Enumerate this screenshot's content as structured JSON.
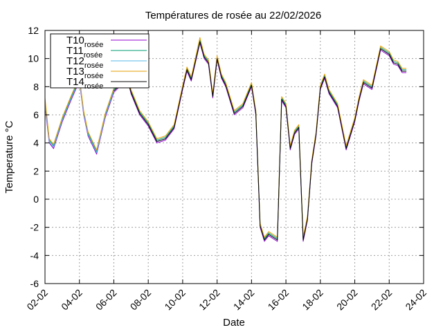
{
  "chart_data": {
    "type": "line",
    "title": "Températures de rosée au 22/02/2026",
    "xlabel": "Date",
    "ylabel": "Temperature °C",
    "xlim": [
      "2026-02-02",
      "2026-02-24"
    ],
    "ylim": [
      -6,
      12
    ],
    "x_tick_labels": [
      "02-02",
      "04-02",
      "06-02",
      "08-02",
      "10-02",
      "12-02",
      "14-02",
      "16-02",
      "18-02",
      "20-02",
      "22-02",
      "24-02"
    ],
    "y_tick_labels": [
      "-6",
      "-4",
      "-2",
      "0",
      "2",
      "4",
      "6",
      "8",
      "10",
      "12"
    ],
    "grid": true,
    "legend_position": "top-left",
    "x": [
      "2026-02-02 00:00",
      "2026-02-02 06:00",
      "2026-02-02 12:00",
      "2026-02-03 00:00",
      "2026-02-03 12:00",
      "2026-02-04 00:00",
      "2026-02-04 06:00",
      "2026-02-04 12:00",
      "2026-02-05 00:00",
      "2026-02-05 12:00",
      "2026-02-06 00:00",
      "2026-02-06 12:00",
      "2026-02-06 18:00",
      "2026-02-07 00:00",
      "2026-02-07 12:00",
      "2026-02-08 00:00",
      "2026-02-08 12:00",
      "2026-02-09 00:00",
      "2026-02-09 12:00",
      "2026-02-10 00:00",
      "2026-02-10 06:00",
      "2026-02-10 12:00",
      "2026-02-11 00:00",
      "2026-02-11 06:00",
      "2026-02-11 12:00",
      "2026-02-11 18:00",
      "2026-02-12 00:00",
      "2026-02-12 06:00",
      "2026-02-12 12:00",
      "2026-02-13 00:00",
      "2026-02-13 12:00",
      "2026-02-14 00:00",
      "2026-02-14 06:00",
      "2026-02-14 12:00",
      "2026-02-14 18:00",
      "2026-02-15 00:00",
      "2026-02-15 12:00",
      "2026-02-15 18:00",
      "2026-02-16 00:00",
      "2026-02-16 06:00",
      "2026-02-16 12:00",
      "2026-02-16 18:00",
      "2026-02-17 00:00",
      "2026-02-17 06:00",
      "2026-02-17 12:00",
      "2026-02-17 18:00",
      "2026-02-18 00:00",
      "2026-02-18 06:00",
      "2026-02-18 12:00",
      "2026-02-19 00:00",
      "2026-02-19 12:00",
      "2026-02-20 00:00",
      "2026-02-20 06:00",
      "2026-02-20 12:00",
      "2026-02-21 00:00",
      "2026-02-21 12:00",
      "2026-02-22 00:00",
      "2026-02-22 06:00",
      "2026-02-22 12:00",
      "2026-02-22 18:00",
      "2026-02-23 00:00"
    ],
    "series": [
      {
        "name": "T10",
        "name_sub": "rosée",
        "color": "#9400d3",
        "values": [
          6.6,
          4.0,
          3.6,
          5.5,
          7.0,
          8.4,
          6.0,
          4.5,
          3.2,
          5.8,
          7.6,
          8.2,
          8.7,
          7.5,
          6.0,
          5.2,
          4.0,
          4.2,
          5.0,
          7.8,
          9.1,
          8.4,
          11.1,
          10.0,
          9.6,
          7.2,
          9.9,
          8.6,
          8.0,
          6.0,
          6.5,
          8.0,
          6.0,
          -2.0,
          -3.0,
          -2.6,
          -3.0,
          7.0,
          6.5,
          3.5,
          4.6,
          5.0,
          -3.0,
          -1.5,
          2.5,
          4.5,
          7.8,
          8.6,
          7.5,
          6.5,
          3.5,
          5.5,
          7.0,
          8.2,
          7.8,
          10.6,
          10.2,
          9.6,
          9.5,
          9.0,
          9.0
        ]
      },
      {
        "name": "T11",
        "name_sub": "rosée",
        "color": "#009e73",
        "values": [
          7.0,
          4.2,
          3.8,
          5.7,
          7.2,
          8.6,
          6.2,
          4.7,
          3.4,
          6.0,
          7.8,
          8.4,
          8.9,
          7.7,
          6.2,
          5.4,
          4.2,
          4.4,
          5.2,
          8.0,
          9.3,
          8.6,
          11.3,
          10.2,
          9.8,
          7.4,
          10.1,
          8.8,
          8.2,
          6.2,
          6.7,
          8.2,
          6.2,
          -1.8,
          -2.8,
          -2.4,
          -2.8,
          7.2,
          6.7,
          3.7,
          4.8,
          5.2,
          -2.8,
          -1.3,
          2.7,
          4.7,
          8.0,
          8.8,
          7.7,
          6.7,
          3.7,
          5.7,
          7.2,
          8.4,
          8.0,
          10.8,
          10.4,
          9.8,
          9.7,
          9.2,
          9.2
        ]
      },
      {
        "name": "T12",
        "name_sub": "rosée",
        "color": "#56b4e9",
        "values": [
          6.8,
          4.1,
          3.7,
          5.6,
          7.1,
          8.5,
          6.1,
          4.6,
          3.3,
          5.9,
          7.7,
          8.3,
          8.8,
          7.6,
          6.1,
          5.3,
          4.1,
          4.3,
          5.1,
          7.9,
          9.2,
          8.5,
          11.2,
          10.1,
          9.7,
          7.3,
          10.0,
          8.7,
          8.1,
          6.1,
          6.6,
          8.1,
          6.1,
          -1.9,
          -2.9,
          -2.5,
          -2.9,
          7.1,
          6.6,
          3.6,
          4.7,
          5.1,
          -2.9,
          -1.4,
          2.6,
          4.6,
          7.9,
          8.7,
          7.6,
          6.6,
          3.6,
          5.6,
          7.1,
          8.3,
          7.9,
          10.7,
          10.3,
          9.7,
          9.6,
          9.1,
          9.1
        ]
      },
      {
        "name": "T13",
        "name_sub": "rosée",
        "color": "#e69f00",
        "values": [
          7.2,
          4.3,
          3.9,
          5.8,
          7.3,
          8.7,
          6.3,
          4.8,
          3.5,
          6.1,
          7.9,
          8.5,
          9.0,
          7.8,
          6.3,
          5.5,
          4.3,
          4.5,
          5.3,
          8.1,
          9.4,
          8.7,
          11.5,
          10.3,
          9.9,
          7.5,
          10.2,
          8.9,
          8.3,
          6.3,
          6.8,
          8.3,
          6.3,
          -1.7,
          -2.7,
          -2.3,
          -2.7,
          7.3,
          6.8,
          3.8,
          4.9,
          5.3,
          -2.7,
          -1.2,
          2.8,
          4.8,
          8.1,
          8.9,
          7.8,
          6.8,
          3.8,
          5.8,
          7.3,
          8.5,
          8.1,
          10.9,
          10.5,
          9.9,
          9.8,
          9.3,
          9.3
        ]
      },
      {
        "name": "T14",
        "name_sub": "rosée",
        "color": "#000000",
        "values": [
          null,
          null,
          null,
          null,
          null,
          null,
          null,
          null,
          null,
          null,
          7.7,
          8.3,
          8.8,
          7.6,
          6.1,
          5.3,
          4.1,
          4.3,
          5.1,
          7.9,
          9.2,
          8.5,
          11.2,
          10.1,
          9.7,
          7.3,
          10.0,
          8.7,
          8.1,
          6.1,
          6.6,
          8.1,
          6.1,
          -1.9,
          -2.9,
          -2.5,
          -2.9,
          7.1,
          6.6,
          3.6,
          4.7,
          5.1,
          -2.9,
          -1.4,
          2.6,
          4.6,
          7.9,
          8.7,
          7.6,
          6.6,
          3.6,
          5.6,
          7.1,
          8.3,
          7.9,
          10.7,
          10.3,
          9.7,
          9.6,
          9.1,
          9.1
        ]
      }
    ]
  }
}
